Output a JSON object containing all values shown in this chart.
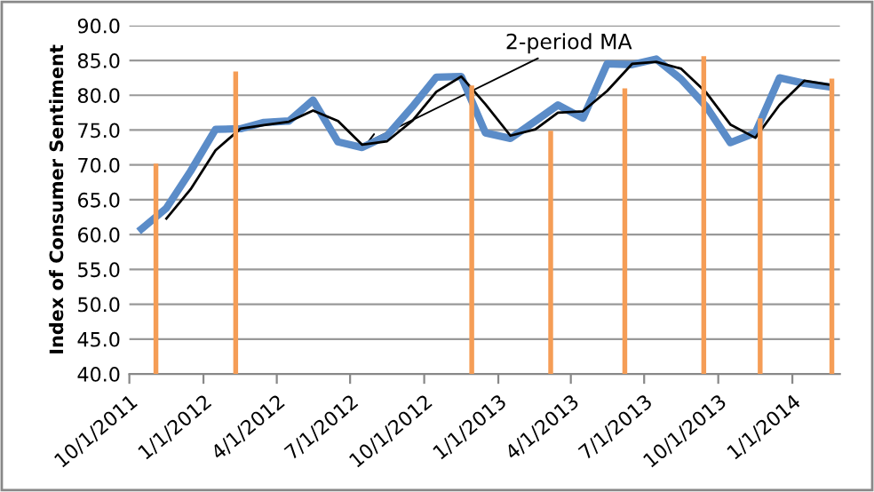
{
  "chart_data": {
    "type": "line",
    "ylabel": "Index of Consumer Sentiment",
    "xlim": [
      "2011-10-01",
      "2014-03-01"
    ],
    "xticks": [
      {
        "value": "2011-10-01",
        "label": "10/1/2011"
      },
      {
        "value": "2012-01-01",
        "label": "1/1/2012"
      },
      {
        "value": "2012-04-01",
        "label": "4/1/2012"
      },
      {
        "value": "2012-07-01",
        "label": "7/1/2012"
      },
      {
        "value": "2012-10-01",
        "label": "10/1/2012"
      },
      {
        "value": "2013-01-01",
        "label": "1/1/2013"
      },
      {
        "value": "2013-04-01",
        "label": "4/1/2013"
      },
      {
        "value": "2013-07-01",
        "label": "7/1/2013"
      },
      {
        "value": "2013-10-01",
        "label": "10/1/2013"
      },
      {
        "value": "2014-01-01",
        "label": "1/1/2014"
      }
    ],
    "ylim": [
      40,
      90
    ],
    "yticks": [
      {
        "value": 40,
        "label": "40.0"
      },
      {
        "value": 45,
        "label": "45.0"
      },
      {
        "value": 50,
        "label": "50.0"
      },
      {
        "value": 55,
        "label": "55.0"
      },
      {
        "value": 60,
        "label": "60.0"
      },
      {
        "value": 65,
        "label": "65.0"
      },
      {
        "value": 70,
        "label": "70.0"
      },
      {
        "value": 75,
        "label": "75.0"
      },
      {
        "value": 80,
        "label": "80.0"
      },
      {
        "value": 85,
        "label": "85.0"
      },
      {
        "value": 90,
        "label": "90.0"
      }
    ],
    "grid": "y",
    "legend": false,
    "x": [
      "2011-10-16",
      "2011-11-16",
      "2011-12-16",
      "2012-01-16",
      "2012-02-16",
      "2012-03-16",
      "2012-04-16",
      "2012-05-16",
      "2012-06-16",
      "2012-07-16",
      "2012-08-16",
      "2012-09-16",
      "2012-10-16",
      "2012-11-16",
      "2012-12-16",
      "2013-01-16",
      "2013-02-16",
      "2013-03-16",
      "2013-04-16",
      "2013-05-16",
      "2013-06-16",
      "2013-07-16",
      "2013-08-16",
      "2013-09-16",
      "2013-10-16",
      "2013-11-16",
      "2013-12-16",
      "2014-01-16",
      "2014-02-16"
    ],
    "series": [
      {
        "type": "bar",
        "color": "#f59d56",
        "x": [
          "2011-11-03",
          "2012-02-10",
          "2012-11-29",
          "2013-03-07",
          "2013-06-07",
          "2013-09-13",
          "2013-11-22",
          "2014-02-19"
        ],
        "values": [
          70.2,
          83.4,
          81.4,
          74.9,
          81.0,
          85.6,
          76.7,
          82.4
        ]
      },
      {
        "color": "#5b8cc8",
        "values": [
          60.8,
          63.8,
          69.1,
          75.1,
          75.2,
          76.1,
          76.3,
          79.3,
          73.3,
          72.5,
          74.2,
          78.3,
          82.6,
          82.7,
          74.6,
          73.8,
          76.3,
          78.6,
          76.7,
          84.5,
          84.4,
          85.2,
          82.3,
          78.4,
          73.2,
          74.6,
          82.5,
          81.7,
          81.2
        ]
      },
      {
        "color": "#000000",
        "values": [
          null,
          62.3,
          66.5,
          72.1,
          75.2,
          75.7,
          76.2,
          77.8,
          76.3,
          72.9,
          73.4,
          76.3,
          80.5,
          82.7,
          78.7,
          74.2,
          75.1,
          77.5,
          77.7,
          80.6,
          84.5,
          84.8,
          83.8,
          80.4,
          75.8,
          73.9,
          78.6,
          82.1,
          81.5
        ]
      }
    ],
    "annotations": [
      {
        "text": "2-period MA",
        "x": "2012-07-16",
        "y": 72.9
      }
    ]
  }
}
